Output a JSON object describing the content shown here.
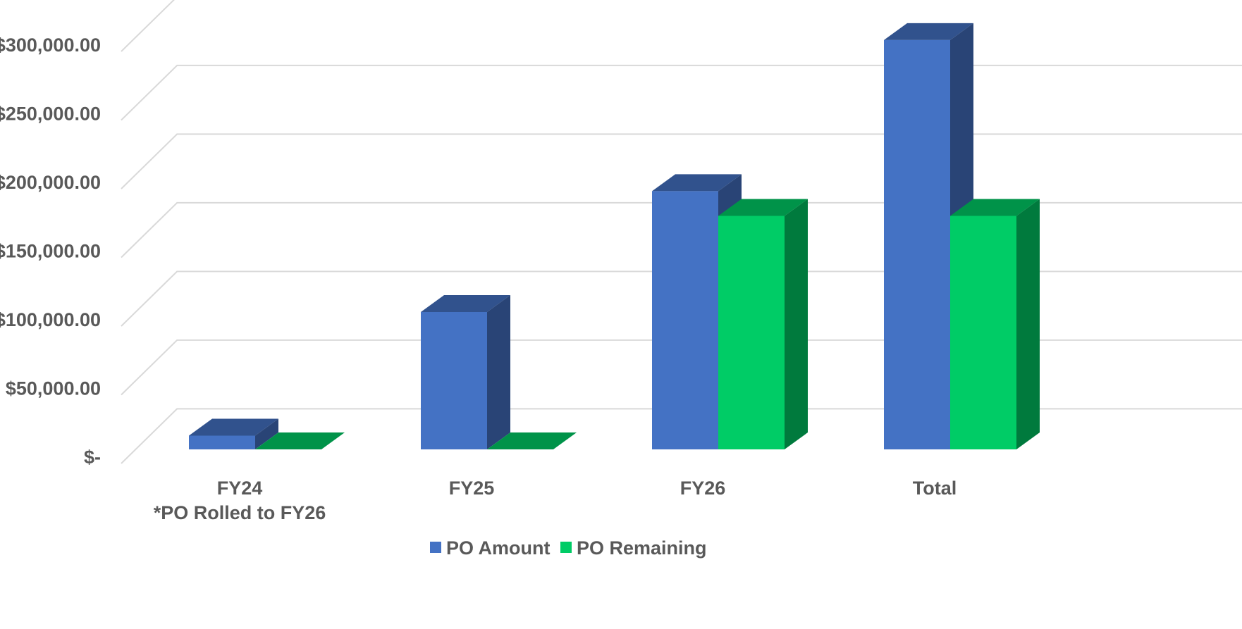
{
  "chart_data": {
    "type": "bar",
    "categories": [
      "FY24",
      "FY25",
      "FY26",
      "Total"
    ],
    "category_notes": [
      "*PO Rolled to FY26",
      "",
      "",
      ""
    ],
    "series": [
      {
        "name": "PO Amount",
        "values": [
          10000,
          100000,
          188000,
          298000
        ],
        "color": "#4472C4"
      },
      {
        "name": "PO Remaining",
        "values": [
          0,
          0,
          170000,
          170000
        ],
        "color": "#00CC66"
      }
    ],
    "ylim": [
      0,
      300000
    ],
    "yticks": [
      0,
      50000,
      100000,
      150000,
      200000,
      250000,
      300000
    ],
    "ytick_labels": [
      "$-",
      "$50,000.00",
      "$100,000.00",
      "$150,000.00",
      "$200,000.00",
      "$250,000.00",
      "$300,000.00"
    ],
    "grid": true,
    "legend_position": "bottom",
    "style": "3d-column"
  }
}
